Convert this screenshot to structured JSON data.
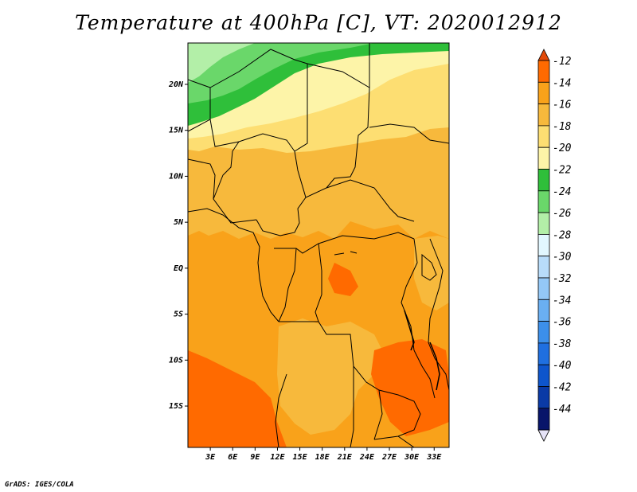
{
  "title": "Temperature at 400hPa [C], VT: 2020012912",
  "footer": "GrADS: IGES/COLA",
  "lat_labels": [
    "20N",
    "15N",
    "10N",
    "5N",
    "EQ",
    "5S",
    "10S",
    "15S"
  ],
  "lat_values": [
    20,
    15,
    10,
    5,
    0,
    -5,
    -10,
    -15
  ],
  "lon_labels": [
    "3E",
    "6E",
    "9E",
    "12E",
    "15E",
    "18E",
    "21E",
    "24E",
    "27E",
    "30E",
    "33E"
  ],
  "lon_values": [
    3,
    6,
    9,
    12,
    15,
    18,
    21,
    24,
    27,
    30,
    33
  ],
  "map_extent": {
    "lon_min": 0,
    "lon_max": 35,
    "lat_min": -19.5,
    "lat_max": 24.5
  },
  "colorbar": {
    "levels": [
      "-12",
      "-14",
      "-16",
      "-18",
      "-20",
      "-22",
      "-24",
      "-26",
      "-28",
      "-30",
      "-32",
      "-34",
      "-36",
      "-38",
      "-40",
      "-42",
      "-44"
    ],
    "colors": [
      "#e34a09",
      "#ff6a00",
      "#f9a21a",
      "#f7b93c",
      "#fdde72",
      "#fdf4a8",
      "#2fbf3a",
      "#6ad76a",
      "#b3efa8",
      "#e2f7ff",
      "#b8dcfa",
      "#94c8f7",
      "#6aaff2",
      "#3c8fea",
      "#1f6fe0",
      "#0e55cc",
      "#0a3aa6",
      "#08156a",
      "#e6e3f7"
    ]
  },
  "colors": {
    "band_green_dark": "#2fbf3a",
    "band_green_mid": "#6ad76a",
    "band_green_light": "#b3efa8",
    "band_pale_yellow": "#fdf4a8",
    "band_yellow": "#fdde72",
    "band_light_orange": "#f7b93c",
    "band_orange": "#f9a21a",
    "band_dark_orange": "#ff6a00",
    "border": "#000000"
  }
}
